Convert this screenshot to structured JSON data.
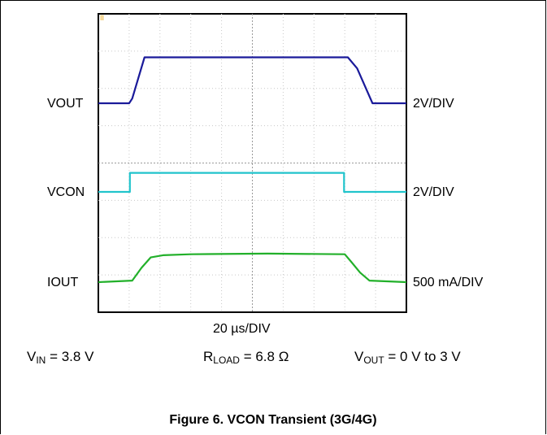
{
  "chart_data": {
    "type": "line",
    "title": "",
    "xlabel": "20 µs/DIV",
    "x_divisions": 10,
    "y_divisions": 8,
    "time_per_div_us": 20,
    "x_range_us": [
      0,
      200
    ],
    "grid": true,
    "series": [
      {
        "name": "VOUT",
        "scale": "2V/DIV",
        "color": "#1a1a9a",
        "values_x_us": [
          0,
          20,
          22,
          30,
          58,
          82,
          110,
          135,
          162,
          168,
          178,
          200
        ],
        "values_y_div": [
          0,
          0,
          0.15,
          1.45,
          1.45,
          1.45,
          1.45,
          1.45,
          1.45,
          1.1,
          0,
          0
        ]
      },
      {
        "name": "VCON",
        "scale": "2V/DIV",
        "color": "#21c4cc",
        "values_x_us": [
          0,
          20.5,
          20.5,
          159.5,
          159.5,
          200
        ],
        "values_y_div": [
          0,
          0,
          0.6,
          0.6,
          0,
          0
        ]
      },
      {
        "name": "IOUT",
        "scale": "500 mA/DIV",
        "color": "#22b02a",
        "values_x_us": [
          0,
          22,
          28,
          34,
          42,
          60,
          110,
          160,
          164,
          170,
          176,
          200
        ],
        "values_y_div": [
          0,
          0.05,
          0.45,
          0.78,
          0.85,
          0.88,
          0.9,
          0.88,
          0.65,
          0.3,
          0.05,
          0
        ]
      }
    ]
  },
  "conditions": {
    "vin_main": "V",
    "vin_sub": "IN",
    "vin_value": " = 3.8 V",
    "rload_main": "R",
    "rload_sub": "LOAD",
    "rload_value": " = 6.8 Ω",
    "vout_main": "V",
    "vout_sub": "OUT",
    "vout_value": " = 0 V to 3 V"
  },
  "marker": "II",
  "caption": "Figure 6. VCON Transient (3G/4G)"
}
